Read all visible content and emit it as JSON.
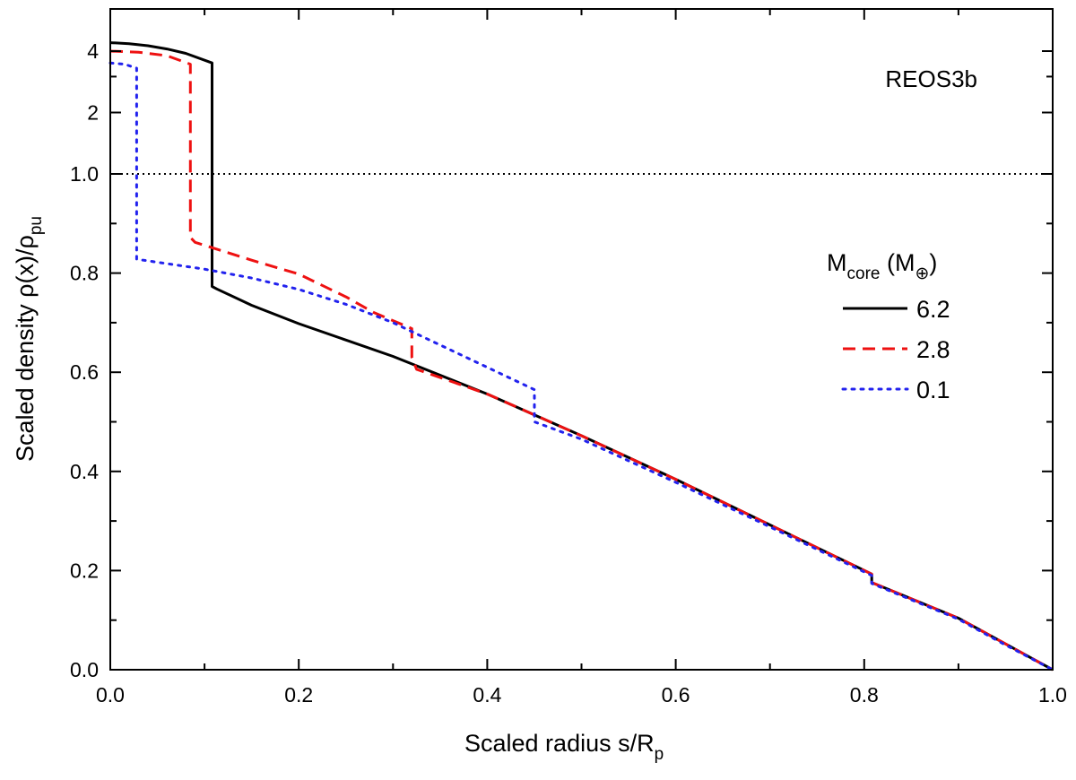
{
  "chart_data": {
    "type": "line",
    "annotation": "REOS3b",
    "xlabel": {
      "main": "Scaled radius s/R",
      "sub": "p"
    },
    "ylabel": {
      "main": "Scaled density ρ(x)/ρ",
      "sub": "pu"
    },
    "xlim": [
      0.0,
      1.0
    ],
    "x_ticks": [
      0.0,
      0.2,
      0.4,
      0.6,
      0.8,
      1.0
    ],
    "x_tick_labels": [
      "0.0",
      "0.2",
      "0.4",
      "0.6",
      "0.8",
      "1.0"
    ],
    "y_ticks_linear": [
      0.0,
      0.2,
      0.4,
      0.6,
      0.8,
      1.0
    ],
    "y_tick_labels_linear": [
      "0.0",
      "0.2",
      "0.4",
      "0.6",
      "0.8",
      "1.0"
    ],
    "y_ticks_upper": [
      2,
      4
    ],
    "y_tick_labels_upper": [
      "2",
      "4"
    ],
    "y_axis_note": "broken axis: linear 0–1.0 below, compressed scale above 1.0",
    "reference_line": {
      "y": 1.0,
      "style": "dotted"
    },
    "legend": {
      "title_main": "M",
      "title_sub": "core",
      "title_unit_open": " (M",
      "title_unit_sub": "⊕",
      "title_unit_close": ")",
      "position": "right"
    },
    "series": [
      {
        "name": "6.2",
        "color": "#000000",
        "style": "solid",
        "points": [
          [
            0.0,
            4.4
          ],
          [
            0.02,
            4.35
          ],
          [
            0.04,
            4.25
          ],
          [
            0.06,
            4.1
          ],
          [
            0.08,
            3.9
          ],
          [
            0.108,
            3.5
          ],
          [
            0.108,
            0.773
          ],
          [
            0.113,
            0.768
          ],
          [
            0.15,
            0.735
          ],
          [
            0.2,
            0.698
          ],
          [
            0.3,
            0.632
          ],
          [
            0.4,
            0.556
          ],
          [
            0.5,
            0.472
          ],
          [
            0.6,
            0.384
          ],
          [
            0.7,
            0.292
          ],
          [
            0.808,
            0.193
          ],
          [
            0.808,
            0.176
          ],
          [
            0.9,
            0.104
          ],
          [
            0.95,
            0.052
          ],
          [
            1.0,
            0.0
          ]
        ]
      },
      {
        "name": "2.8",
        "color": "#ee1111",
        "style": "dashed",
        "points": [
          [
            0.0,
            4.0
          ],
          [
            0.03,
            3.95
          ],
          [
            0.06,
            3.8
          ],
          [
            0.085,
            3.45
          ],
          [
            0.085,
            0.872
          ],
          [
            0.09,
            0.862
          ],
          [
            0.15,
            0.826
          ],
          [
            0.2,
            0.798
          ],
          [
            0.25,
            0.752
          ],
          [
            0.28,
            0.72
          ],
          [
            0.32,
            0.688
          ],
          [
            0.32,
            0.63
          ],
          [
            0.325,
            0.606
          ],
          [
            0.4,
            0.556
          ],
          [
            0.5,
            0.472
          ],
          [
            0.6,
            0.384
          ],
          [
            0.7,
            0.292
          ],
          [
            0.808,
            0.193
          ],
          [
            0.808,
            0.176
          ],
          [
            0.9,
            0.104
          ],
          [
            0.95,
            0.052
          ],
          [
            1.0,
            0.0
          ]
        ]
      },
      {
        "name": "0.1",
        "color": "#2222ee",
        "style": "dotted",
        "points": [
          [
            0.0,
            3.5
          ],
          [
            0.015,
            3.45
          ],
          [
            0.028,
            3.3
          ],
          [
            0.028,
            0.828
          ],
          [
            0.035,
            0.826
          ],
          [
            0.1,
            0.808
          ],
          [
            0.15,
            0.79
          ],
          [
            0.2,
            0.767
          ],
          [
            0.25,
            0.737
          ],
          [
            0.3,
            0.7
          ],
          [
            0.35,
            0.655
          ],
          [
            0.4,
            0.61
          ],
          [
            0.45,
            0.565
          ],
          [
            0.45,
            0.5
          ],
          [
            0.5,
            0.465
          ],
          [
            0.6,
            0.378
          ],
          [
            0.7,
            0.288
          ],
          [
            0.808,
            0.19
          ],
          [
            0.808,
            0.174
          ],
          [
            0.9,
            0.102
          ],
          [
            0.95,
            0.05
          ],
          [
            1.0,
            0.0
          ]
        ]
      }
    ]
  }
}
